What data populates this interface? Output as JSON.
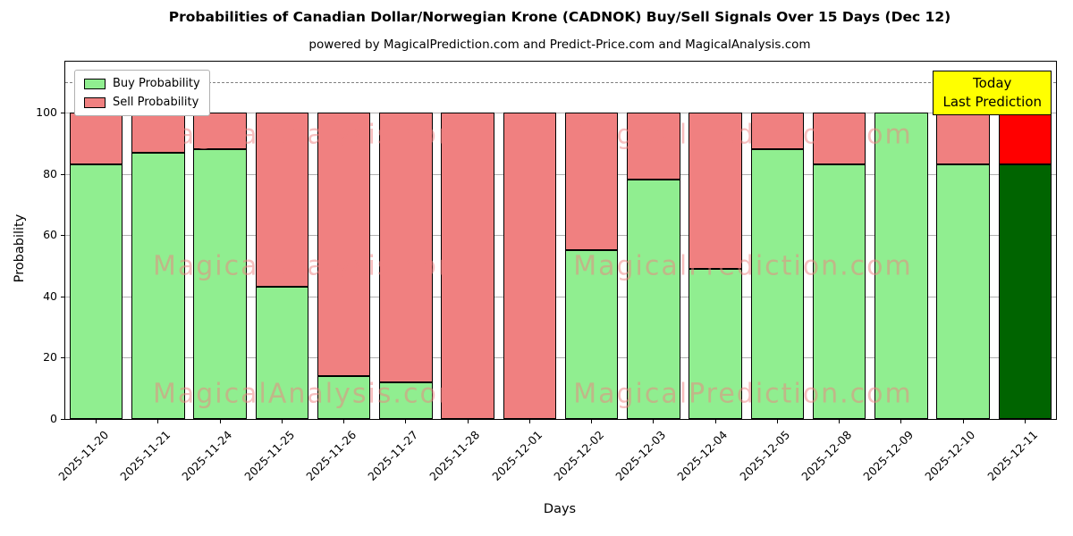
{
  "title": "Probabilities of Canadian Dollar/Norwegian Krone (CADNOK) Buy/Sell Signals Over 15 Days (Dec 12)",
  "subtitle": "powered by MagicalPrediction.com and Predict-Price.com and MagicalAnalysis.com",
  "xlabel": "Days",
  "ylabel": "Probability",
  "legend": {
    "buy": "Buy Probability",
    "sell": "Sell Probability"
  },
  "today_box": {
    "line1": "Today",
    "line2": "Last Prediction",
    "bg": "#FFFF00"
  },
  "watermarks": [
    "MagicalAnalysis.com",
    "MagicalPrediction.com"
  ],
  "chart_data": {
    "type": "bar",
    "stacked": true,
    "title": "Probabilities of Canadian Dollar/Norwegian Krone (CADNOK) Buy/Sell Signals Over 15 Days (Dec 12)",
    "xlabel": "Days",
    "ylabel": "Probability",
    "grid": "horizontal",
    "legend_position": "upper-left",
    "categories": [
      "2025-11-20",
      "2025-11-21",
      "2025-11-24",
      "2025-11-25",
      "2025-11-26",
      "2025-11-27",
      "2025-11-28",
      "2025-12-01",
      "2025-12-02",
      "2025-12-03",
      "2025-12-04",
      "2025-12-05",
      "2025-12-08",
      "2025-12-09",
      "2025-12-10",
      "2025-12-11"
    ],
    "series": [
      {
        "name": "Buy Probability",
        "color": "#90EE90",
        "values": [
          83,
          87,
          88,
          43,
          14,
          12,
          0,
          0,
          55,
          78,
          49,
          88,
          83,
          100,
          83,
          83
        ]
      },
      {
        "name": "Sell Probability",
        "color": "#F08080",
        "values": [
          17,
          13,
          12,
          57,
          86,
          88,
          100,
          100,
          45,
          22,
          51,
          12,
          17,
          0,
          17,
          17
        ]
      }
    ],
    "today_index": 15,
    "today_colors": {
      "buy": "#006400",
      "sell": "#FF0000"
    },
    "yticks": [
      0,
      20,
      40,
      60,
      80,
      100
    ],
    "ylim": [
      0,
      116.6
    ],
    "dashed_line_y": 110
  }
}
